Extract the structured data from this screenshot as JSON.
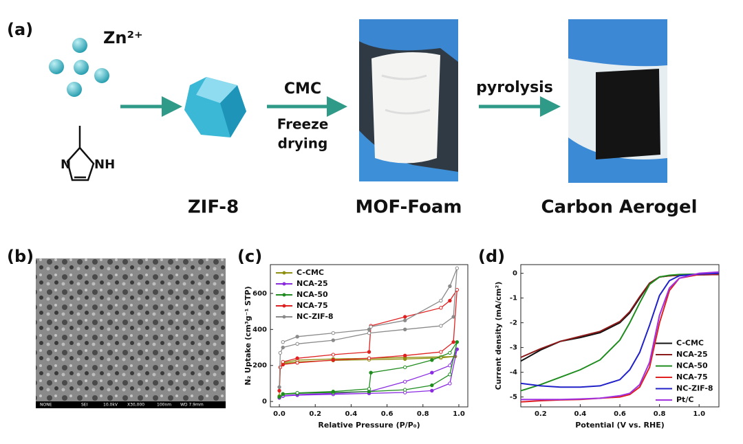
{
  "panels": {
    "a": {
      "label": "(a)",
      "ion": "Zn²⁺",
      "ring_n": "N",
      "ring_nh": "NH",
      "step1_top": "CMC",
      "step1_bottom": [
        "Freeze",
        "drying"
      ],
      "step2": "pyrolysis",
      "product1": "ZIF-8",
      "product2": "MOF-Foam",
      "product3": "Carbon Aerogel"
    },
    "b": {
      "label": "(b)",
      "sem_info": [
        "NONE",
        "SEI",
        "10.0kV",
        "X30,000",
        "100nm",
        "WD 7.9mm"
      ]
    },
    "c": {
      "label": "(c)"
    },
    "d": {
      "label": "(d)"
    }
  },
  "chart_data": [
    {
      "type": "line",
      "marker": true,
      "legend": "upper left",
      "x_label": "Relative Pressure (P/P₀)",
      "y_label": "N₂ Uptake (cm³g⁻¹ STP)",
      "xlim": [
        -0.05,
        1.05
      ],
      "ylim": [
        -30,
        760
      ],
      "xticks": [
        {
          "value": 0,
          "label": "0.0"
        },
        0.2,
        0.4,
        0.6,
        0.8,
        {
          "value": 1,
          "label": "1.0"
        }
      ],
      "yticks": [
        0,
        200,
        400,
        600
      ],
      "series": [
        {
          "name": "C-CMC",
          "color": "#8f8f10",
          "x": [
            0,
            0.005,
            0.02,
            0.1,
            0.3,
            0.5,
            0.7,
            0.9,
            0.98,
            0.9,
            0.7,
            0.5,
            0.3,
            0.1,
            0.02
          ],
          "values": [
            30,
            190,
            210,
            220,
            228,
            232,
            236,
            242,
            250,
            248,
            244,
            240,
            236,
            230,
            215
          ]
        },
        {
          "name": "NCA-25",
          "color": "#8a2be2",
          "x": [
            0,
            0.02,
            0.1,
            0.3,
            0.5,
            0.7,
            0.85,
            0.95,
            0.99,
            0.95,
            0.85,
            0.7,
            0.5,
            0.3,
            0.1,
            0.02
          ],
          "values": [
            20,
            30,
            35,
            40,
            45,
            50,
            60,
            100,
            290,
            200,
            160,
            110,
            55,
            45,
            38,
            32
          ]
        },
        {
          "name": "NCA-50",
          "color": "#1e8c1e",
          "x": [
            0,
            0.02,
            0.1,
            0.3,
            0.5,
            0.7,
            0.85,
            0.95,
            0.99,
            0.95,
            0.85,
            0.7,
            0.51,
            0.5,
            0.3,
            0.1,
            0.02
          ],
          "values": [
            25,
            40,
            45,
            50,
            55,
            65,
            90,
            150,
            330,
            270,
            230,
            190,
            160,
            70,
            55,
            48,
            42
          ]
        },
        {
          "name": "NCA-75",
          "color": "#e02020",
          "x": [
            0,
            0.005,
            0.02,
            0.1,
            0.3,
            0.5,
            0.7,
            0.9,
            0.97,
            0.99,
            0.95,
            0.9,
            0.7,
            0.51,
            0.5,
            0.3,
            0.1,
            0.02
          ],
          "values": [
            60,
            190,
            205,
            215,
            230,
            240,
            255,
            275,
            330,
            620,
            560,
            520,
            470,
            420,
            275,
            260,
            240,
            220
          ]
        },
        {
          "name": "NC-ZIF-8",
          "color": "#8a8a8a",
          "x": [
            0,
            0.005,
            0.02,
            0.1,
            0.3,
            0.5,
            0.7,
            0.9,
            0.97,
            0.99,
            0.95,
            0.9,
            0.7,
            0.51,
            0.5,
            0.3,
            0.1,
            0.02
          ],
          "values": [
            80,
            270,
            300,
            320,
            340,
            380,
            400,
            420,
            470,
            740,
            640,
            560,
            450,
            415,
            400,
            380,
            360,
            330
          ]
        }
      ]
    },
    {
      "type": "line",
      "marker": false,
      "legend": "lower right",
      "x_label": "Potential (V vs. RHE)",
      "y_label": "Current density (mA/cm²)",
      "xlim": [
        0.1,
        1.1
      ],
      "ylim": [
        -5.4,
        0.35
      ],
      "xticks": [
        0.2,
        0.4,
        0.6,
        0.8,
        {
          "value": 1,
          "label": "1.0"
        }
      ],
      "yticks": [
        0,
        -1,
        -2,
        -3,
        -4,
        -5
      ],
      "x": [
        0.1,
        0.2,
        0.3,
        0.4,
        0.5,
        0.6,
        0.65,
        0.7,
        0.75,
        0.8,
        0.85,
        0.9,
        1.0,
        1.1
      ],
      "series": [
        {
          "name": "C-CMC",
          "color": "#111111",
          "values": [
            -3.55,
            -3.1,
            -2.75,
            -2.6,
            -2.4,
            -2.0,
            -1.6,
            -1.0,
            -0.4,
            -0.15,
            -0.1,
            -0.08,
            -0.06,
            -0.05
          ]
        },
        {
          "name": "NCA-25",
          "color": "#8b1a1a",
          "values": [
            -3.4,
            -3.05,
            -2.75,
            -2.55,
            -2.35,
            -1.95,
            -1.55,
            -0.95,
            -0.4,
            -0.15,
            -0.1,
            -0.08,
            -0.06,
            -0.05
          ]
        },
        {
          "name": "NCA-50",
          "color": "#1e8c1e",
          "values": [
            -4.75,
            -4.5,
            -4.2,
            -3.9,
            -3.5,
            -2.7,
            -2.0,
            -1.2,
            -0.45,
            -0.15,
            -0.08,
            -0.05,
            -0.03,
            -0.02
          ]
        },
        {
          "name": "NCA-75",
          "color": "#e02020",
          "values": [
            -5.2,
            -5.15,
            -5.12,
            -5.1,
            -5.05,
            -5.0,
            -4.9,
            -4.6,
            -3.8,
            -2.0,
            -0.7,
            -0.2,
            -0.05,
            -0.02
          ]
        },
        {
          "name": "NC-ZIF-8",
          "color": "#2020c8",
          "values": [
            -4.45,
            -4.55,
            -4.6,
            -4.6,
            -4.55,
            -4.3,
            -3.9,
            -3.2,
            -2.1,
            -0.9,
            -0.3,
            -0.1,
            -0.03,
            0.0
          ]
        },
        {
          "name": "Pt/C",
          "color": "#a030e0",
          "values": [
            -5.1,
            -5.1,
            -5.1,
            -5.08,
            -5.05,
            -4.95,
            -4.85,
            -4.5,
            -3.6,
            -1.7,
            -0.6,
            -0.2,
            0.0,
            0.05
          ]
        }
      ]
    }
  ]
}
